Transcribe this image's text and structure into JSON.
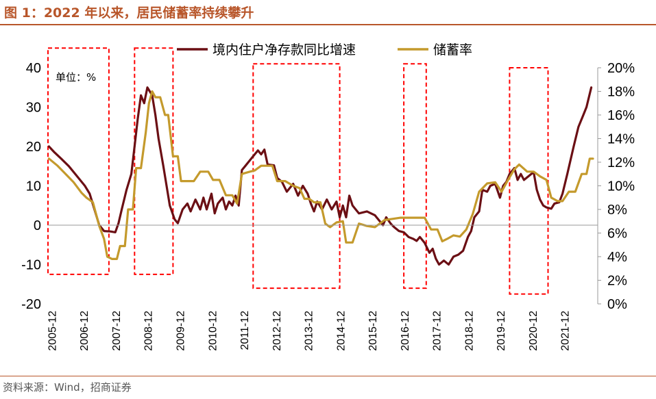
{
  "figure": {
    "title": "图 1：2022 年以来，居民储蓄率持续攀升",
    "source": "资料来源：Wind，招商证券"
  },
  "colors": {
    "deposit_line": "#6b0f14",
    "saving_line": "#c49a2c",
    "highlight_box": "#ff0000",
    "accent": "#b8562a"
  },
  "chart_data": {
    "type": "line",
    "unit_label": "单位：%",
    "legend_position": "top-center",
    "categories": [
      "2005-12",
      "2006-12",
      "2007-12",
      "2008-12",
      "2009-12",
      "2010-12",
      "2011-12",
      "2012-12",
      "2013-12",
      "2014-12",
      "2015-12",
      "2016-12",
      "2017-12",
      "2018-12",
      "2019-12",
      "2020-12",
      "2021-12"
    ],
    "x_start": 2005.8,
    "y_left": {
      "min": -20,
      "max": 40,
      "ticks": [
        -20,
        -10,
        0,
        10,
        20,
        30,
        40
      ]
    },
    "y_right": {
      "min": 0,
      "max": 20,
      "ticks": [
        "0%",
        "2%",
        "4%",
        "6%",
        "8%",
        "10%",
        "12%",
        "14%",
        "16%",
        "18%",
        "20%"
      ]
    },
    "highlight_periods": [
      {
        "start": 2005.8,
        "end": 2007.7,
        "y_top": 45,
        "y_bottom": -12.5
      },
      {
        "start": 2008.5,
        "end": 2009.7,
        "y_top": 45,
        "y_bottom": -12.5
      },
      {
        "start": 2012.2,
        "end": 2014.9,
        "y_top": 41,
        "y_bottom": -16
      },
      {
        "start": 2016.9,
        "end": 2017.6,
        "y_top": 41,
        "y_bottom": -16
      },
      {
        "start": 2020.2,
        "end": 2021.4,
        "y_top": 40,
        "y_bottom": -17.5
      }
    ],
    "series": [
      {
        "name": "境内住户净存款同比增速",
        "axis": "left",
        "points": [
          [
            2005.83,
            20
          ],
          [
            2006.0,
            18.5
          ],
          [
            2006.2,
            17
          ],
          [
            2006.45,
            15
          ],
          [
            2006.7,
            12.5
          ],
          [
            2006.95,
            10
          ],
          [
            2007.1,
            8
          ],
          [
            2007.25,
            4
          ],
          [
            2007.4,
            0
          ],
          [
            2007.55,
            -1.5
          ],
          [
            2007.75,
            -1.6
          ],
          [
            2007.9,
            -1.8
          ],
          [
            2008.0,
            0.5
          ],
          [
            2008.1,
            4
          ],
          [
            2008.25,
            9
          ],
          [
            2008.4,
            13
          ],
          [
            2008.5,
            20
          ],
          [
            2008.6,
            27
          ],
          [
            2008.7,
            33
          ],
          [
            2008.8,
            31
          ],
          [
            2008.9,
            35
          ],
          [
            2009.05,
            33
          ],
          [
            2009.15,
            28
          ],
          [
            2009.25,
            22
          ],
          [
            2009.4,
            15
          ],
          [
            2009.5,
            10
          ],
          [
            2009.6,
            5
          ],
          [
            2009.75,
            1.5
          ],
          [
            2009.85,
            0.5
          ],
          [
            2010.0,
            4
          ],
          [
            2010.15,
            5.5
          ],
          [
            2010.25,
            3.5
          ],
          [
            2010.4,
            6.5
          ],
          [
            2010.55,
            4
          ],
          [
            2010.65,
            7
          ],
          [
            2010.75,
            4
          ],
          [
            2010.9,
            8
          ],
          [
            2011.0,
            3
          ],
          [
            2011.1,
            5.5
          ],
          [
            2011.25,
            7
          ],
          [
            2011.35,
            4
          ],
          [
            2011.45,
            6
          ],
          [
            2011.55,
            5
          ],
          [
            2011.65,
            7.5
          ],
          [
            2011.75,
            5
          ],
          [
            2011.85,
            14
          ],
          [
            2011.95,
            15
          ],
          [
            2012.1,
            16.5
          ],
          [
            2012.25,
            18
          ],
          [
            2012.35,
            19
          ],
          [
            2012.45,
            18
          ],
          [
            2012.55,
            19.2
          ],
          [
            2012.65,
            15.5
          ],
          [
            2012.75,
            15.3
          ],
          [
            2012.85,
            15.2
          ],
          [
            2012.95,
            12
          ],
          [
            2013.1,
            11
          ],
          [
            2013.25,
            8.5
          ],
          [
            2013.45,
            10.5
          ],
          [
            2013.6,
            7.5
          ],
          [
            2013.75,
            10
          ],
          [
            2013.9,
            8
          ],
          [
            2014.0,
            5.5
          ],
          [
            2014.1,
            3.5
          ],
          [
            2014.2,
            6
          ],
          [
            2014.35,
            4
          ],
          [
            2014.5,
            6.5
          ],
          [
            2014.65,
            4
          ],
          [
            2014.8,
            6
          ],
          [
            2014.9,
            2
          ],
          [
            2015.0,
            5
          ],
          [
            2015.1,
            2
          ],
          [
            2015.2,
            7.5
          ],
          [
            2015.3,
            5
          ],
          [
            2015.4,
            4
          ],
          [
            2015.5,
            3
          ],
          [
            2015.75,
            3.5
          ],
          [
            2016.0,
            2.5
          ],
          [
            2016.25,
            0
          ],
          [
            2016.35,
            2
          ],
          [
            2016.5,
            0.3
          ],
          [
            2016.6,
            -0.5
          ],
          [
            2016.75,
            -1.5
          ],
          [
            2016.9,
            -1.8
          ],
          [
            2017.05,
            -3
          ],
          [
            2017.2,
            -3.5
          ],
          [
            2017.3,
            -4
          ],
          [
            2017.4,
            -3
          ],
          [
            2017.55,
            -4.5
          ],
          [
            2017.7,
            -7
          ],
          [
            2017.8,
            -6
          ],
          [
            2017.9,
            -8.5
          ],
          [
            2018.0,
            -10
          ],
          [
            2018.15,
            -9
          ],
          [
            2018.3,
            -10
          ],
          [
            2018.45,
            -8
          ],
          [
            2018.6,
            -7.5
          ],
          [
            2018.75,
            -6.5
          ],
          [
            2018.9,
            -3
          ],
          [
            2019.0,
            -1.5
          ],
          [
            2019.1,
            2
          ],
          [
            2019.25,
            3.5
          ],
          [
            2019.35,
            9
          ],
          [
            2019.5,
            8.5
          ],
          [
            2019.6,
            10
          ],
          [
            2019.75,
            10.5
          ],
          [
            2019.9,
            7
          ],
          [
            2020.0,
            10
          ],
          [
            2020.1,
            11
          ],
          [
            2020.2,
            13
          ],
          [
            2020.35,
            14.5
          ],
          [
            2020.45,
            11.5
          ],
          [
            2020.55,
            13
          ],
          [
            2020.65,
            11.5
          ],
          [
            2020.8,
            12.5
          ],
          [
            2020.95,
            13.5
          ],
          [
            2021.05,
            9
          ],
          [
            2021.15,
            6.5
          ],
          [
            2021.25,
            5
          ],
          [
            2021.35,
            4.5
          ],
          [
            2021.5,
            4.2
          ],
          [
            2021.6,
            5.5
          ],
          [
            2021.75,
            5.8
          ],
          [
            2021.85,
            8
          ],
          [
            2022.0,
            13
          ],
          [
            2022.2,
            20
          ],
          [
            2022.35,
            25
          ],
          [
            2022.5,
            28
          ],
          [
            2022.6,
            30
          ],
          [
            2022.75,
            35
          ]
        ]
      },
      {
        "name": "储蓄率",
        "axis": "right",
        "points": [
          [
            2005.83,
            12.3
          ],
          [
            2006.1,
            11.7
          ],
          [
            2006.35,
            11
          ],
          [
            2006.6,
            10.3
          ],
          [
            2006.85,
            9.4
          ],
          [
            2007.0,
            9
          ],
          [
            2007.2,
            8.6
          ],
          [
            2007.4,
            6.6
          ],
          [
            2007.55,
            5.5
          ],
          [
            2007.65,
            4
          ],
          [
            2007.8,
            3.8
          ],
          [
            2007.95,
            3.8
          ],
          [
            2008.05,
            4.9
          ],
          [
            2008.2,
            4.9
          ],
          [
            2008.3,
            8
          ],
          [
            2008.45,
            8
          ],
          [
            2008.55,
            11.5
          ],
          [
            2008.7,
            11.5
          ],
          [
            2008.85,
            14.5
          ],
          [
            2008.95,
            17
          ],
          [
            2009.05,
            18
          ],
          [
            2009.15,
            17.5
          ],
          [
            2009.3,
            17.5
          ],
          [
            2009.45,
            16
          ],
          [
            2009.55,
            16
          ],
          [
            2009.7,
            12.5
          ],
          [
            2009.85,
            12.5
          ],
          [
            2009.95,
            10.4
          ],
          [
            2010.2,
            10.4
          ],
          [
            2010.35,
            10.4
          ],
          [
            2010.55,
            11.2
          ],
          [
            2010.8,
            11.2
          ],
          [
            2010.95,
            10.5
          ],
          [
            2011.15,
            10.5
          ],
          [
            2011.35,
            9.2
          ],
          [
            2011.55,
            9.2
          ],
          [
            2011.7,
            8.5
          ],
          [
            2011.85,
            11
          ],
          [
            2012.1,
            11.2
          ],
          [
            2012.25,
            11.3
          ],
          [
            2012.45,
            11.7
          ],
          [
            2012.6,
            11.7
          ],
          [
            2012.8,
            11.7
          ],
          [
            2012.95,
            10.4
          ],
          [
            2013.2,
            10.4
          ],
          [
            2013.45,
            10
          ],
          [
            2013.65,
            9.8
          ],
          [
            2013.8,
            8.9
          ],
          [
            2013.95,
            8.9
          ],
          [
            2014.1,
            8.6
          ],
          [
            2014.3,
            8.6
          ],
          [
            2014.45,
            6.8
          ],
          [
            2014.6,
            6.5
          ],
          [
            2014.8,
            6.9
          ],
          [
            2015.0,
            7
          ],
          [
            2015.1,
            5.2
          ],
          [
            2015.3,
            5.2
          ],
          [
            2015.5,
            6.8
          ],
          [
            2015.75,
            6.6
          ],
          [
            2016.0,
            6.5
          ],
          [
            2016.3,
            7.1
          ],
          [
            2016.55,
            7.2
          ],
          [
            2016.8,
            7.3
          ],
          [
            2017.05,
            7.3
          ],
          [
            2017.35,
            7.3
          ],
          [
            2017.55,
            7.3
          ],
          [
            2017.75,
            6.3
          ],
          [
            2017.95,
            6.3
          ],
          [
            2018.1,
            5.3
          ],
          [
            2018.25,
            5.5
          ],
          [
            2018.45,
            5.8
          ],
          [
            2018.65,
            5.7
          ],
          [
            2018.85,
            6.3
          ],
          [
            2019.05,
            7.6
          ],
          [
            2019.25,
            9.5
          ],
          [
            2019.5,
            10.2
          ],
          [
            2019.75,
            10.3
          ],
          [
            2019.95,
            9.5
          ],
          [
            2020.15,
            10.5
          ],
          [
            2020.35,
            11.4
          ],
          [
            2020.5,
            11.8
          ],
          [
            2020.75,
            11.2
          ],
          [
            2020.95,
            11.2
          ],
          [
            2021.15,
            10.8
          ],
          [
            2021.35,
            10.5
          ],
          [
            2021.5,
            9
          ],
          [
            2021.7,
            8.7
          ],
          [
            2021.85,
            8.7
          ],
          [
            2022.05,
            9.5
          ],
          [
            2022.25,
            9.5
          ],
          [
            2022.45,
            11
          ],
          [
            2022.6,
            11
          ],
          [
            2022.7,
            12.3
          ],
          [
            2022.8,
            12.3
          ]
        ]
      }
    ]
  }
}
